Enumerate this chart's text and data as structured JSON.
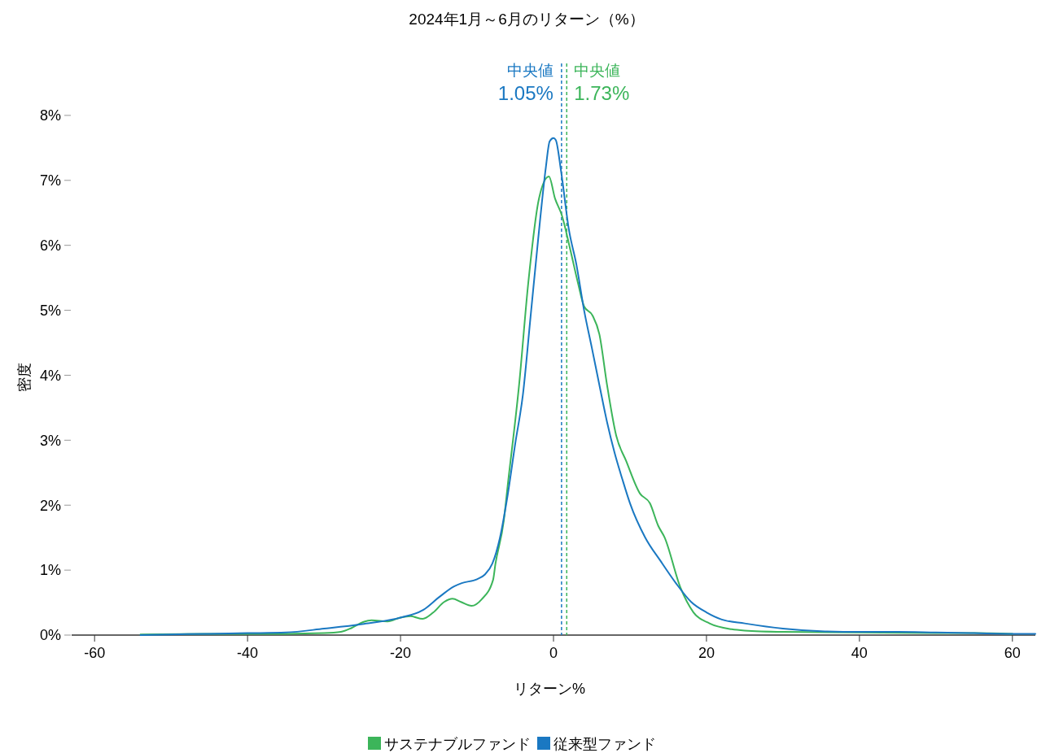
{
  "chart_data": {
    "type": "line",
    "title": "2024年1月～6月のリターン（%）",
    "xlabel": "リターン%",
    "ylabel": "密度",
    "xlim": [
      -63,
      63
    ],
    "xticks": [
      -60,
      -40,
      -20,
      0,
      20,
      40,
      60
    ],
    "ylim": [
      0,
      8.8
    ],
    "yticks": [
      {
        "value": 0,
        "label": "0%"
      },
      {
        "value": 1,
        "label": "1%"
      },
      {
        "value": 2,
        "label": "2%"
      },
      {
        "value": 3,
        "label": "3%"
      },
      {
        "value": 4,
        "label": "4%"
      },
      {
        "value": 5,
        "label": "5%"
      },
      {
        "value": 6,
        "label": "6%"
      },
      {
        "value": 7,
        "label": "7%"
      },
      {
        "value": 8,
        "label": "8%"
      }
    ],
    "grid": false,
    "legend": "bottom",
    "line_style": "solid",
    "marker": "none",
    "series": [
      {
        "name": "サステナブルファンド",
        "color": "#3cb55a",
        "x": [
          -54,
          -45,
          -40,
          -35,
          -30,
          -27.8,
          -26.4,
          -24.9,
          -23.8,
          -21.7,
          -20,
          -18.7,
          -17.1,
          -15.7,
          -14.3,
          -13.2,
          -12.1,
          -10.7,
          -9.4,
          -7.9,
          -7.6,
          -6.5,
          -6,
          -4.5,
          -3.3,
          -1.9,
          -0.6,
          0.2,
          1.1,
          2.2,
          3.2,
          4,
          5.1,
          6,
          7,
          8.2,
          9.5,
          11.3,
          12.6,
          13.7,
          14.5,
          16.6,
          18.3,
          20.4,
          23.3,
          25,
          30,
          40,
          50,
          55,
          60
        ],
        "values": [
          0.01,
          0.02,
          0.02,
          0.02,
          0.03,
          0.05,
          0.11,
          0.2,
          0.23,
          0.21,
          0.27,
          0.29,
          0.25,
          0.35,
          0.51,
          0.56,
          0.51,
          0.45,
          0.55,
          0.85,
          1.09,
          1.76,
          2.29,
          3.85,
          5.42,
          6.72,
          7.06,
          6.72,
          6.46,
          5.93,
          5.42,
          5.06,
          4.92,
          4.63,
          3.85,
          3.07,
          2.68,
          2.18,
          2.03,
          1.68,
          1.51,
          0.73,
          0.35,
          0.18,
          0.09,
          0.07,
          0.05,
          0.04,
          0.03,
          0.03,
          0.02
        ]
      },
      {
        "name": "従来型ファンド",
        "color": "#1a78c2",
        "x": [
          -54,
          -50,
          -45,
          -40,
          -35,
          -30,
          -25,
          -20,
          -17,
          -15,
          -13,
          -12,
          -10,
          -9,
          -8,
          -7,
          -6,
          -5,
          -4,
          -3,
          -2,
          -1,
          -0.5,
          0,
          0.3,
          1,
          2,
          3,
          4,
          5,
          6,
          7,
          8,
          9,
          10,
          12,
          14,
          16,
          18,
          20,
          22,
          25,
          30,
          35,
          40,
          45,
          50,
          55,
          60,
          63
        ],
        "values": [
          0,
          0.01,
          0.02,
          0.03,
          0.04,
          0.1,
          0.17,
          0.27,
          0.39,
          0.58,
          0.75,
          0.8,
          0.86,
          0.93,
          1.1,
          1.5,
          2.15,
          2.95,
          3.7,
          4.9,
          6.1,
          7.2,
          7.6,
          7.65,
          7.62,
          7.13,
          6.25,
          5.7,
          5,
          4.43,
          3.85,
          3.28,
          2.8,
          2.4,
          2.03,
          1.5,
          1.14,
          0.8,
          0.51,
          0.35,
          0.24,
          0.18,
          0.1,
          0.06,
          0.05,
          0.05,
          0.04,
          0.03,
          0.02,
          0.02
        ]
      }
    ],
    "ref_lines": [
      {
        "axis": "x",
        "value": 1.05,
        "label": "中央値\n1.05%",
        "color": "#1a78c2",
        "line_style": "dashed"
      },
      {
        "axis": "x",
        "value": 1.73,
        "label": "中央値\n1.73%",
        "color": "#3cb55a",
        "line_style": "dashed"
      }
    ]
  }
}
